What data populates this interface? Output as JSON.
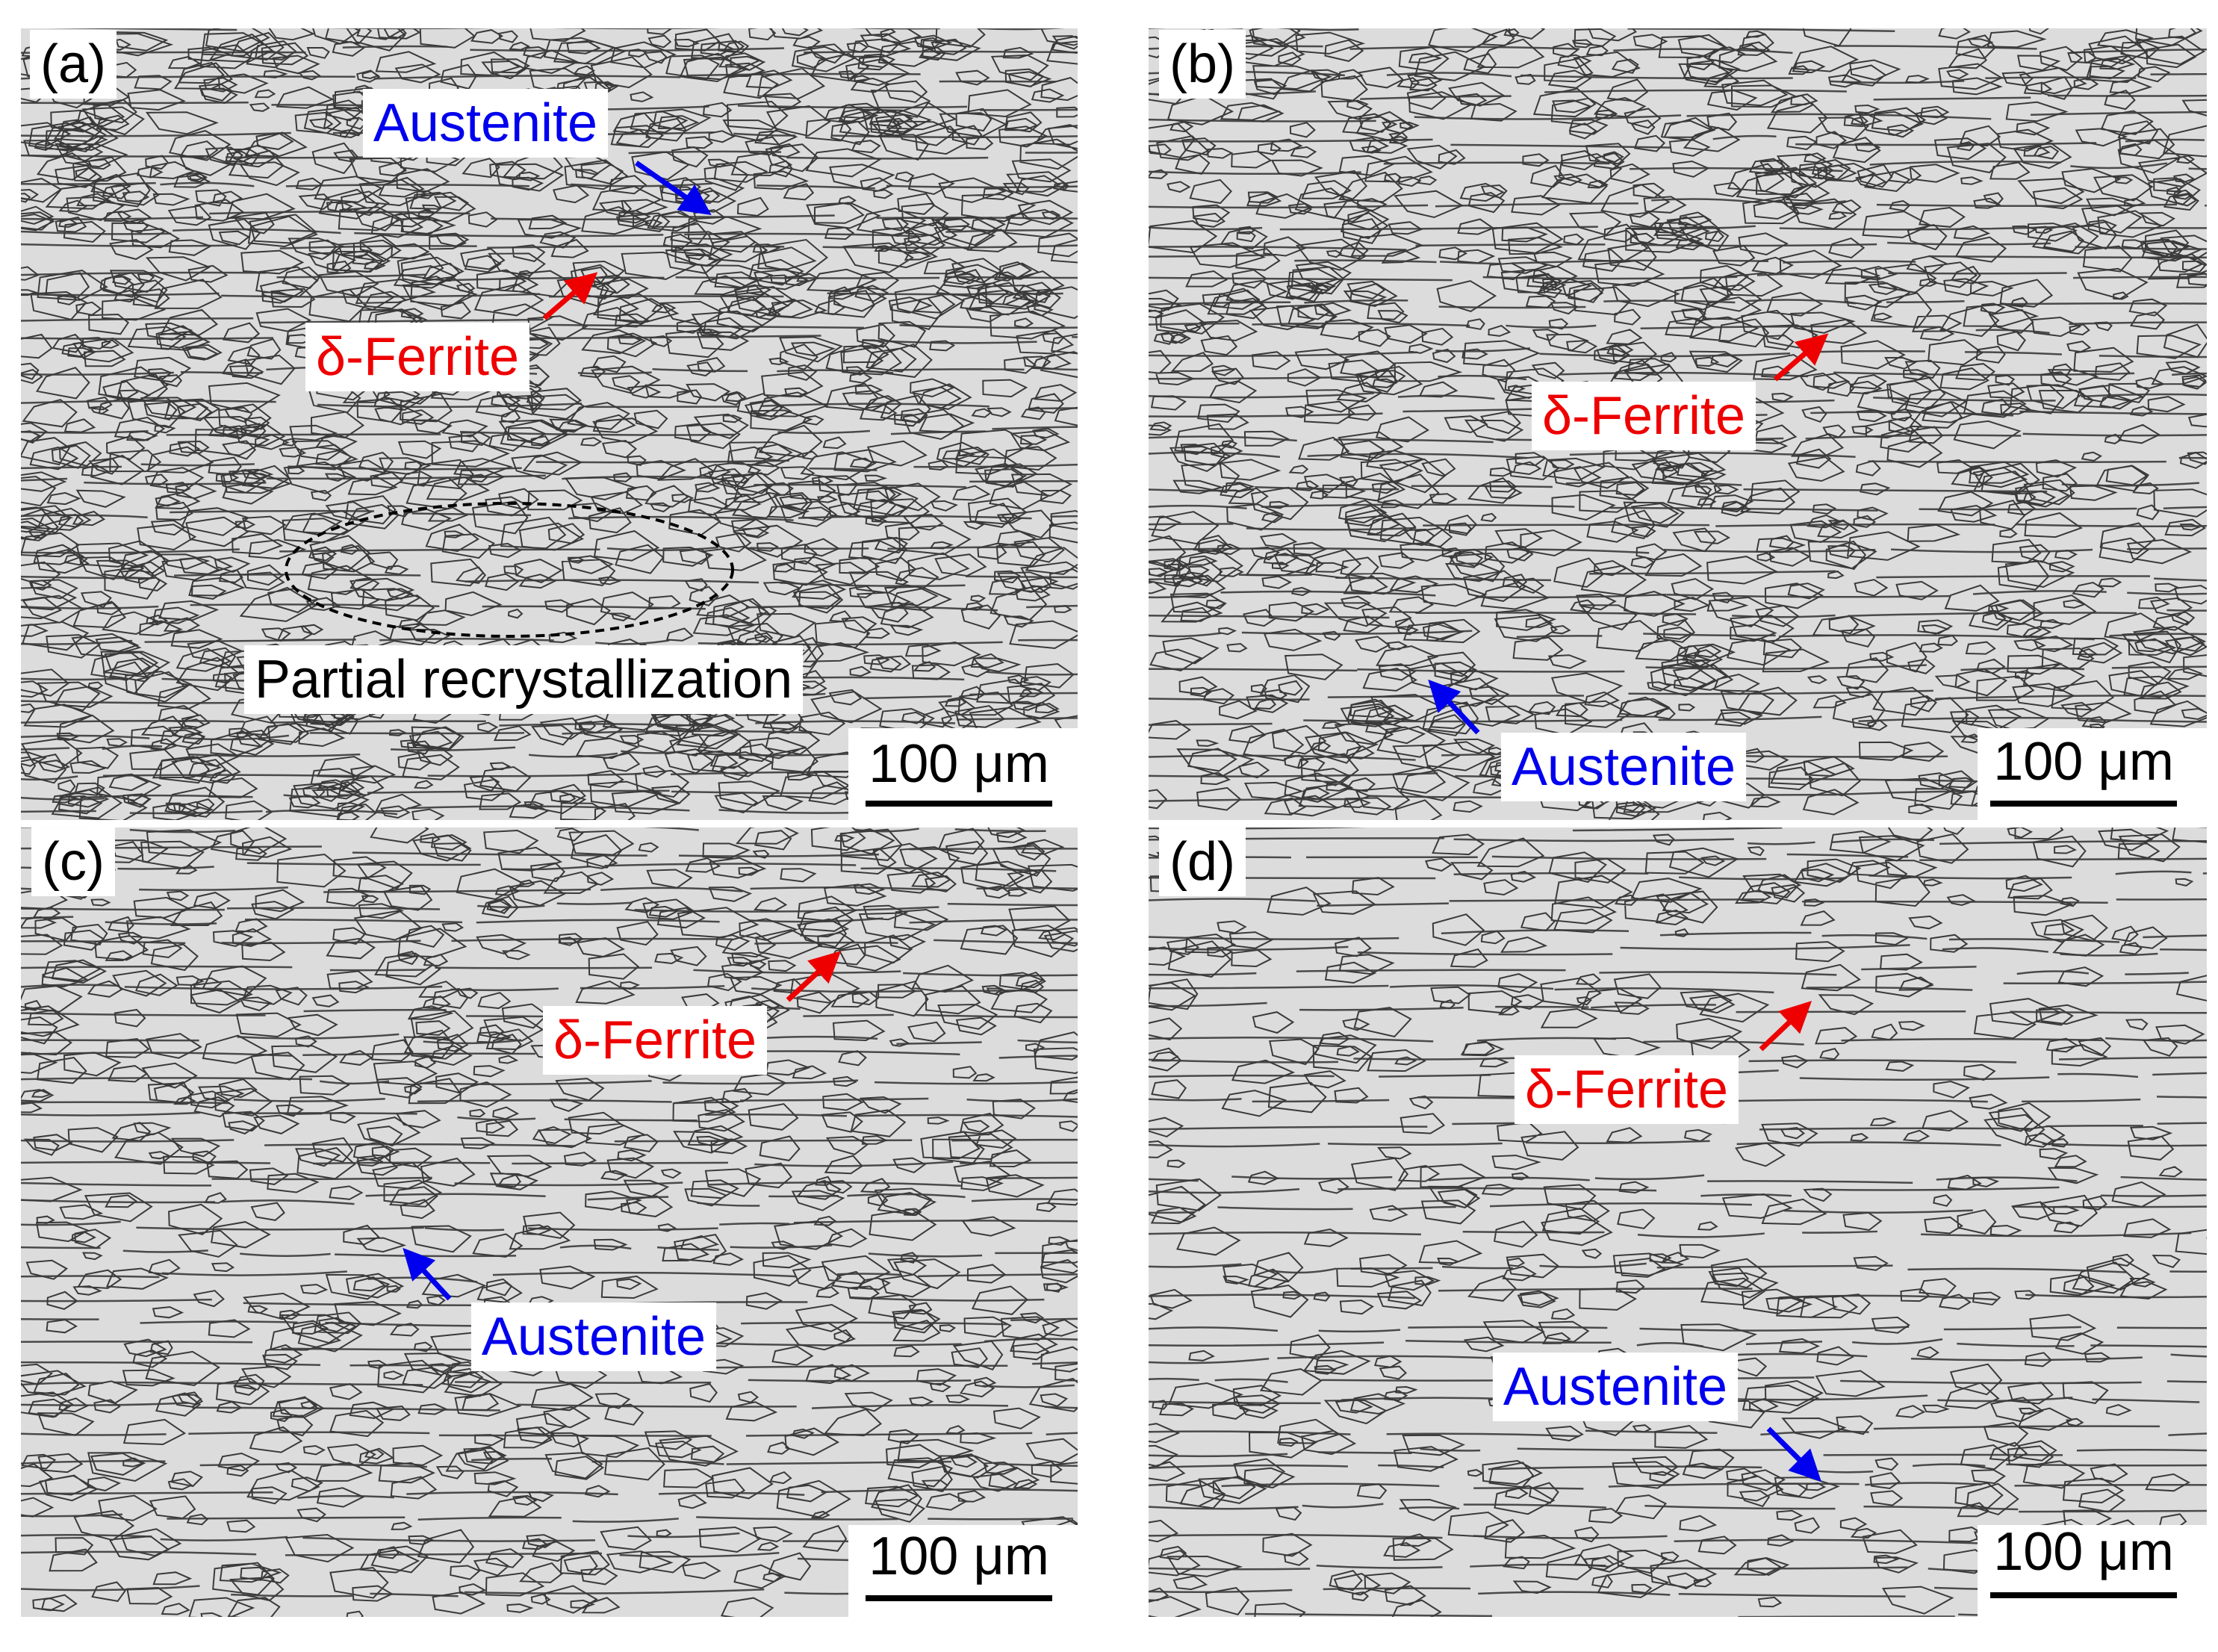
{
  "panels": [
    {
      "label": "(a)",
      "annotations": [
        "Austenite",
        "δ-Ferrite",
        "Partial recrystallization"
      ],
      "scale_bar": "100 μm"
    },
    {
      "label": "(b)",
      "annotations": [
        "δ-Ferrite",
        "Austenite"
      ],
      "scale_bar": "100 μm"
    },
    {
      "label": "(c)",
      "annotations": [
        "δ-Ferrite",
        "Austenite"
      ],
      "scale_bar": "100 μm"
    },
    {
      "label": "(d)",
      "annotations": [
        "δ-Ferrite",
        "Austenite"
      ],
      "scale_bar": "100 μm"
    }
  ]
}
